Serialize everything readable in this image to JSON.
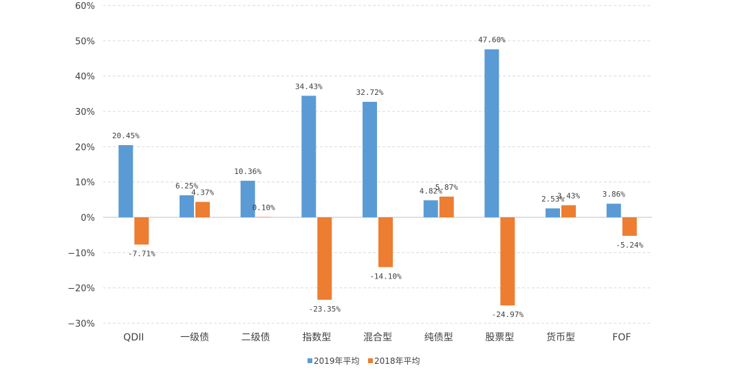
{
  "chart_data": {
    "type": "bar",
    "categories": [
      "QDII",
      "一级债",
      "二级债",
      "指数型",
      "混合型",
      "纯债型",
      "股票型",
      "货币型",
      "FOF"
    ],
    "series": [
      {
        "name": "2019年平均",
        "color": "#5b9bd5",
        "values": [
          20.45,
          6.25,
          10.36,
          34.43,
          32.72,
          4.82,
          47.6,
          2.53,
          3.86
        ],
        "labels": [
          "20.45%",
          "6.25%",
          "10.36%",
          "34.43%",
          "32.72%",
          "4.82%",
          "47.60%",
          "2.53%",
          "3.86%"
        ]
      },
      {
        "name": "2018年平均",
        "color": "#ed7d31",
        "values": [
          -7.71,
          4.37,
          0.1,
          -23.35,
          -14.1,
          5.87,
          -24.97,
          3.43,
          -5.24
        ],
        "labels": [
          "-7.71%",
          "4.37%",
          "0.10%",
          "-23.35%",
          "-14.10%",
          "5.87%",
          "-24.97%",
          "3.43%",
          "-5.24%"
        ]
      }
    ],
    "ylim": [
      -30,
      60
    ],
    "yticks": [
      -30,
      -20,
      -10,
      0,
      10,
      20,
      30,
      40,
      50,
      60
    ],
    "ytick_labels": [
      "−30%",
      "−20%",
      "−10%",
      "0%",
      "10%",
      "20%",
      "30%",
      "40%",
      "50%",
      "60%"
    ],
    "grid": true,
    "legend_position": "bottom",
    "title": "",
    "xlabel": "",
    "ylabel": ""
  }
}
